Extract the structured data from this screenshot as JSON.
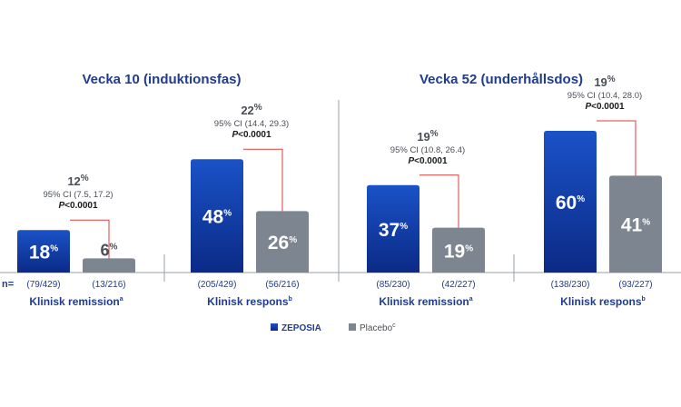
{
  "colors": {
    "zeposia_top": "#1a52c7",
    "zeposia_bottom": "#0b2a86",
    "placebo": "#7c8590",
    "bracket": "#e23b3b",
    "axis": "#9aa0a6",
    "title": "#1f3c8f"
  },
  "chart_data": {
    "type": "bar",
    "y_unit": "%",
    "ylim": [
      0,
      70
    ],
    "n_prefix": "n=",
    "legend": [
      {
        "key": "zeposia",
        "label": "ZEPOSIA"
      },
      {
        "key": "placebo",
        "label": "Placebo",
        "sup": "c"
      }
    ],
    "panels": [
      {
        "title": "Vecka 10 (induktionsfas)",
        "groups": [
          {
            "category": "Klinisk remission",
            "category_sup": "a",
            "zeposia": {
              "value": 18,
              "n": "(79/429)"
            },
            "placebo": {
              "value": 6,
              "n": "(13/216)"
            },
            "difference": {
              "value": "12",
              "unit": "%",
              "ci_label": "95% CI",
              "ci": "(7.5, 17.2)",
              "p": "<0.0001"
            }
          },
          {
            "category": "Klinisk respons",
            "category_sup": "b",
            "zeposia": {
              "value": 48,
              "n": "(205/429)"
            },
            "placebo": {
              "value": 26,
              "n": "(56/216)"
            },
            "difference": {
              "value": "22",
              "unit": "%",
              "ci_label": "95% CI",
              "ci": "(14.4, 29.3)",
              "p": "<0.0001"
            }
          }
        ]
      },
      {
        "title": "Vecka 52 (underhållsdos)",
        "groups": [
          {
            "category": "Klinisk remission",
            "category_sup": "a",
            "zeposia": {
              "value": 37,
              "n": "(85/230)"
            },
            "placebo": {
              "value": 19,
              "n": "(42/227)"
            },
            "difference": {
              "value": "19",
              "unit": "%",
              "ci_label": "95% CI",
              "ci": "(10.8, 26.4)",
              "p": "<0.0001"
            }
          },
          {
            "category": "Klinisk respons",
            "category_sup": "b",
            "zeposia": {
              "value": 60,
              "n": "(138/230)"
            },
            "placebo": {
              "value": 41,
              "n": "(93/227)"
            },
            "difference": {
              "value": "19",
              "unit": "%",
              "ci_label": "95% CI",
              "ci": "(10.4, 28.0)",
              "p": "<0.0001"
            }
          }
        ]
      }
    ]
  }
}
